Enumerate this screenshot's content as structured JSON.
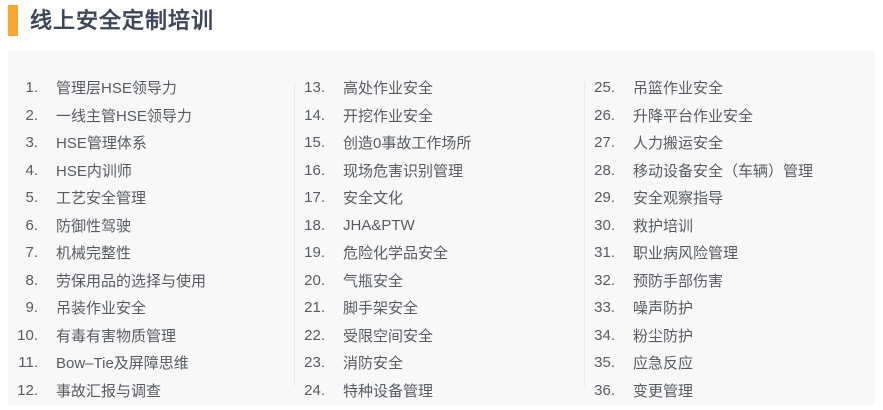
{
  "header": {
    "title": "线上安全定制培训"
  },
  "theme": {
    "accent_color": "#FAA732",
    "title_color": "#3D4757",
    "card_bg": "#F8F8F8",
    "text_color": "#575C63",
    "divider_color": "#E9E9E9"
  },
  "course_list": {
    "columns": [
      {
        "items": [
          {
            "num": "1.",
            "label": "管理层HSE领导力"
          },
          {
            "num": "2.",
            "label": "一线主管HSE领导力"
          },
          {
            "num": "3.",
            "label": "HSE管理体系"
          },
          {
            "num": "4.",
            "label": "HSE内训师"
          },
          {
            "num": "5.",
            "label": "工艺安全管理"
          },
          {
            "num": "6.",
            "label": "防御性驾驶"
          },
          {
            "num": "7.",
            "label": "机械完整性"
          },
          {
            "num": "8.",
            "label": "劳保用品的选择与使用"
          },
          {
            "num": "9.",
            "label": "吊装作业安全"
          },
          {
            "num": "10.",
            "label": "有毒有害物质管理"
          },
          {
            "num": "11.",
            "label": "Bow–Tie及屏障思维"
          },
          {
            "num": "12.",
            "label": "事故汇报与调查"
          }
        ]
      },
      {
        "items": [
          {
            "num": "13.",
            "label": "高处作业安全"
          },
          {
            "num": "14.",
            "label": "开挖作业安全"
          },
          {
            "num": "15.",
            "label": "创造0事故工作场所"
          },
          {
            "num": "16.",
            "label": "现场危害识别管理"
          },
          {
            "num": "17.",
            "label": "安全文化"
          },
          {
            "num": "18.",
            "label": "JHA&PTW"
          },
          {
            "num": "19.",
            "label": "危险化学品安全"
          },
          {
            "num": "20.",
            "label": "气瓶安全"
          },
          {
            "num": "21.",
            "label": "脚手架安全"
          },
          {
            "num": "22.",
            "label": "受限空间安全"
          },
          {
            "num": "23.",
            "label": "消防安全"
          },
          {
            "num": "24.",
            "label": "特种设备管理"
          }
        ]
      },
      {
        "items": [
          {
            "num": "25.",
            "label": "吊篮作业安全"
          },
          {
            "num": "26.",
            "label": "升降平台作业安全"
          },
          {
            "num": "27.",
            "label": "人力搬运安全"
          },
          {
            "num": "28.",
            "label": "移动设备安全（车辆）管理"
          },
          {
            "num": "29.",
            "label": "安全观察指导"
          },
          {
            "num": "30.",
            "label": "救护培训"
          },
          {
            "num": "31.",
            "label": "职业病风险管理"
          },
          {
            "num": "32.",
            "label": "预防手部伤害"
          },
          {
            "num": "33.",
            "label": "噪声防护"
          },
          {
            "num": "34.",
            "label": "粉尘防护"
          },
          {
            "num": "35.",
            "label": "应急反应"
          },
          {
            "num": "36.",
            "label": "变更管理"
          }
        ]
      }
    ]
  }
}
